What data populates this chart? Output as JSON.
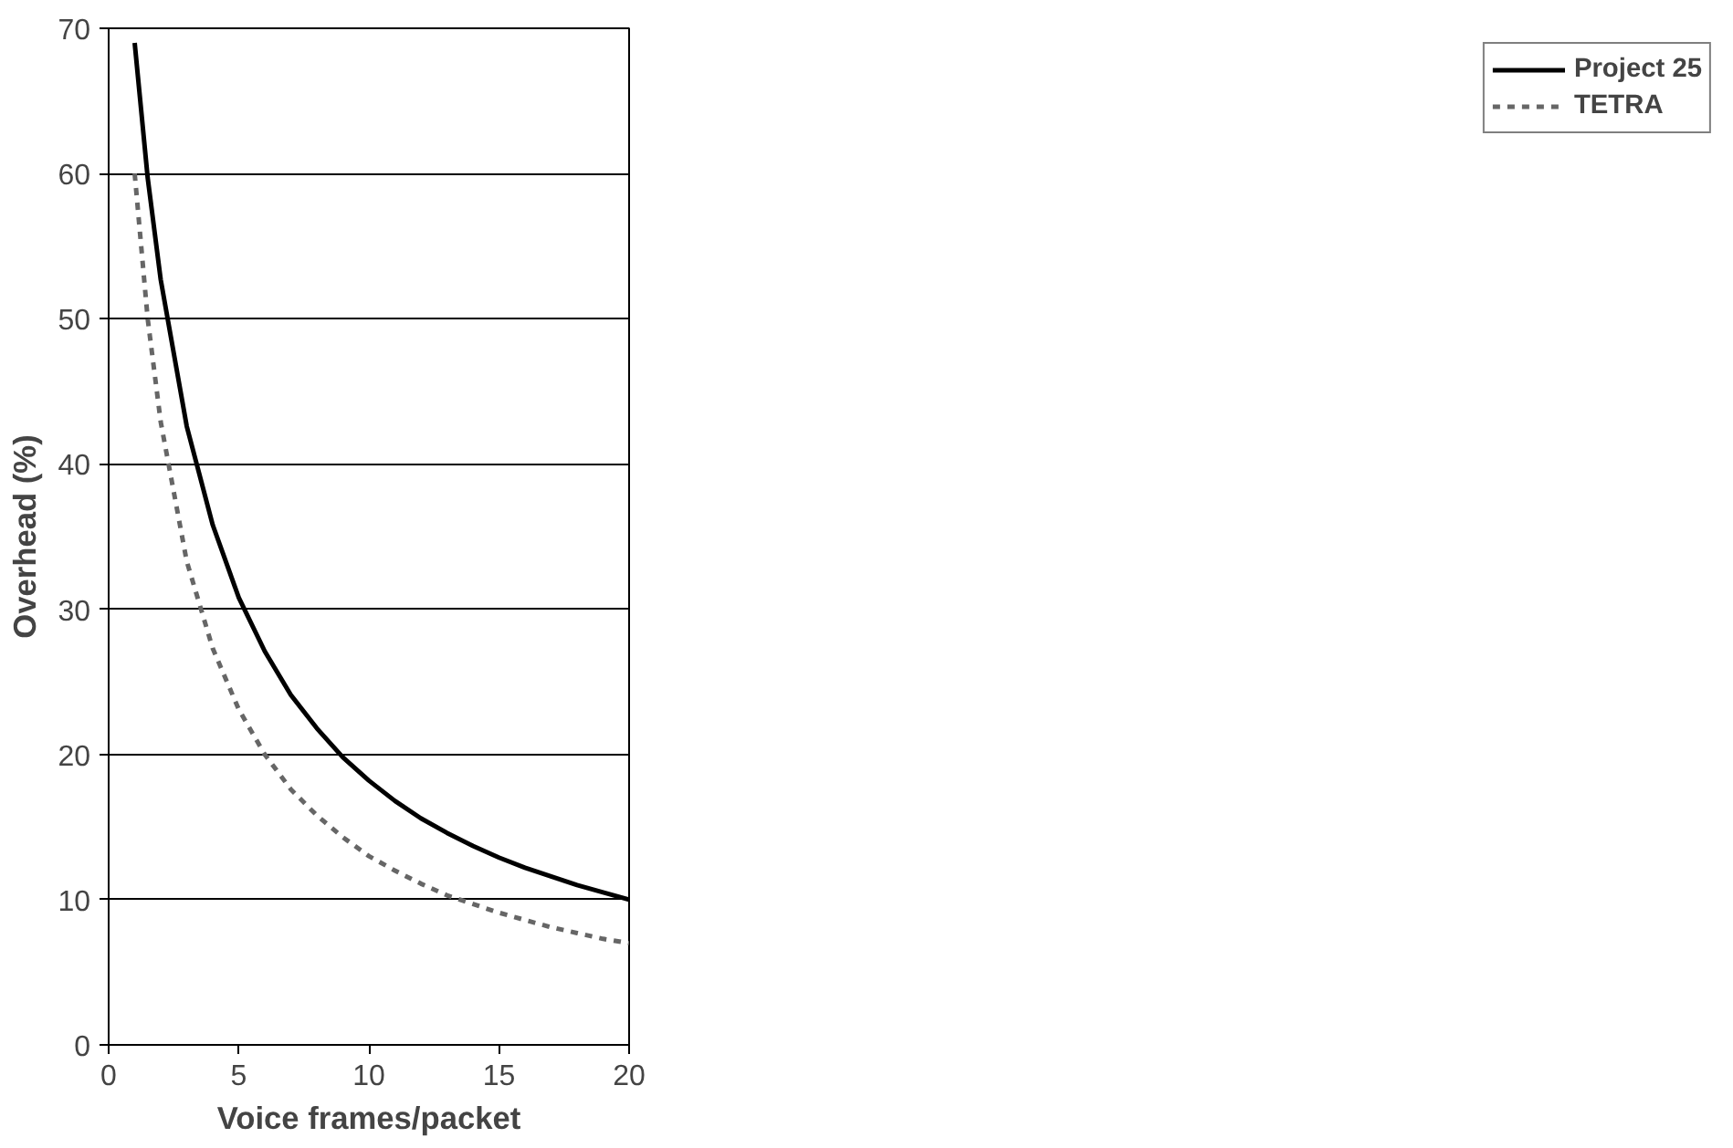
{
  "chart_data": {
    "type": "line",
    "xlabel": "Voice frames/packet",
    "ylabel": "Overhead (%)",
    "xlim": [
      0,
      20
    ],
    "xticks": [
      0,
      5,
      10,
      15,
      20
    ],
    "ylim": [
      0,
      70
    ],
    "yticks": [
      0,
      10,
      20,
      30,
      40,
      50,
      60,
      70
    ],
    "grid": "y",
    "legend": "right",
    "marker": "none",
    "series": [
      {
        "name": "Project 25",
        "color": "#000000",
        "line_style": "solid",
        "x": [
          1,
          1.5,
          2,
          3,
          4,
          5,
          6,
          7,
          8,
          9,
          10,
          11,
          12,
          13,
          14,
          15,
          16,
          17,
          18,
          19,
          20
        ],
        "values": [
          69,
          59.7,
          52.7,
          42.6,
          35.8,
          30.8,
          27.1,
          24.1,
          21.8,
          19.8,
          18.2,
          16.8,
          15.6,
          14.6,
          13.7,
          12.9,
          12.2,
          11.6,
          11.0,
          10.5,
          10.0
        ]
      },
      {
        "name": "TETRA",
        "color": "#666666",
        "line_style": "dashed",
        "x": [
          1,
          1.5,
          2,
          3,
          4,
          5,
          6,
          7,
          8,
          9,
          10,
          11,
          12,
          13,
          14,
          15,
          16,
          17,
          18,
          19,
          20
        ],
        "values": [
          60,
          50,
          42.9,
          33.3,
          27.3,
          23.1,
          20,
          17.6,
          15.8,
          14.3,
          13.0,
          12.0,
          11.1,
          10.3,
          9.7,
          9.1,
          8.6,
          8.1,
          7.7,
          7.3,
          7.0
        ]
      }
    ]
  }
}
